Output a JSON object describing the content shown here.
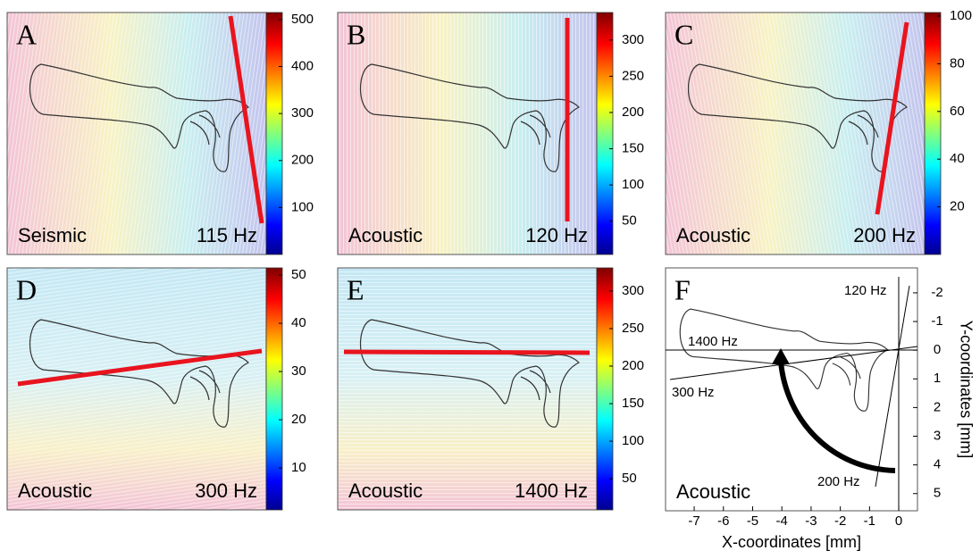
{
  "panels": [
    {
      "letter": "A",
      "mode": "Seismic",
      "frequency": "115 Hz",
      "colorbar": {
        "lim": [
          0,
          515
        ],
        "ticks": [
          100,
          200,
          300,
          400,
          500
        ]
      }
    },
    {
      "letter": "B",
      "mode": "Acoustic",
      "frequency": "120 Hz",
      "colorbar": {
        "lim": [
          4,
          338
        ],
        "ticks": [
          50,
          100,
          150,
          200,
          250,
          300
        ]
      }
    },
    {
      "letter": "C",
      "mode": "Acoustic",
      "frequency": "200 Hz",
      "colorbar": {
        "lim": [
          0,
          101.5
        ],
        "ticks": [
          20,
          40,
          60,
          80,
          100
        ]
      }
    },
    {
      "letter": "D",
      "mode": "Acoustic",
      "frequency": "300 Hz",
      "colorbar": {
        "lim": [
          1.3,
          51.5
        ],
        "ticks": [
          10,
          20,
          30,
          40,
          50
        ]
      }
    },
    {
      "letter": "E",
      "mode": "Acoustic",
      "frequency": "1400 Hz",
      "colorbar": {
        "lim": [
          8.5,
          330.8
        ],
        "ticks": [
          50,
          100,
          150,
          200,
          250,
          300
        ]
      }
    }
  ],
  "panel_f": {
    "letter": "F",
    "mode": "Acoustic",
    "xlabel": "X-coordinates [mm]",
    "ylabel": "Y-coordinates [mm]",
    "xlim": [
      -7.98,
      0.64
    ],
    "xticks": [
      -7,
      -6,
      -5,
      -4,
      -3,
      -2,
      -1,
      0
    ],
    "ylim": [
      -2.87,
      5.6
    ],
    "yticks": [
      -2,
      -1,
      0,
      1,
      2,
      3,
      4,
      5
    ],
    "line_labels": [
      "120 Hz",
      "1400 Hz",
      "300 Hz",
      "200 Hz"
    ]
  }
}
